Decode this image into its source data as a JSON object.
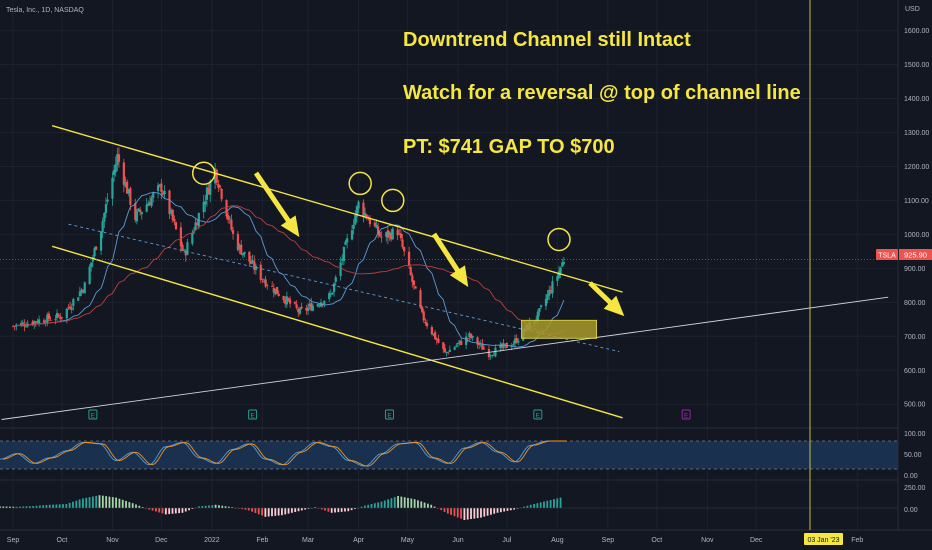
{
  "symbol_title": "Tesla, Inc., 1D, NASDAQ",
  "currency": "USD",
  "annotations": {
    "line1": "Downtrend Channel still Intact",
    "line2": "Watch for a reversal @ top of channel line",
    "line3": "PT: $741 GAP TO $700"
  },
  "last_price_tag": {
    "ticker": "TSLA",
    "price": "925.90"
  },
  "date_marker": "03 Jan '23",
  "earnings_marker_label": "E",
  "colors": {
    "background": "#131722",
    "up": "#26a69a",
    "down": "#ef5350",
    "channel": "#f5e642",
    "annotation_text": "#f5e642",
    "ma_fast": "#5b9bd5",
    "ma_slow": "#c23b3b",
    "trendline": "#d1d4dc"
  },
  "chart_data": [
    {
      "type": "line",
      "panel": "price",
      "title": "Tesla, Inc., 1D, NASDAQ",
      "x_ticks": [
        "Sep",
        "Oct",
        "Nov",
        "Dec",
        "2022",
        "Feb",
        "Mar",
        "Apr",
        "May",
        "Jun",
        "Jul",
        "Aug",
        "Sep",
        "Oct",
        "Nov",
        "Dec",
        "03 Jan '23",
        "Feb"
      ],
      "y_ticks": [
        1600,
        1500,
        1400,
        1300,
        1200,
        1100,
        1000,
        900,
        800,
        700,
        600,
        500
      ],
      "ylabel": "USD",
      "ylim": [
        430,
        1690
      ],
      "series": [
        {
          "name": "TSLA",
          "x": [
            "2021-09-01",
            "2021-09-15",
            "2021-10-01",
            "2021-10-15",
            "2021-10-25",
            "2021-11-04",
            "2021-11-15",
            "2021-12-01",
            "2021-12-15",
            "2022-01-03",
            "2022-01-15",
            "2022-02-01",
            "2022-02-24",
            "2022-03-15",
            "2022-04-01",
            "2022-04-15",
            "2022-04-25",
            "2022-05-10",
            "2022-05-24",
            "2022-06-08",
            "2022-06-20",
            "2022-07-05",
            "2022-07-20",
            "2022-08-01",
            "2022-08-05"
          ],
          "values": [
            730,
            745,
            760,
            850,
            1020,
            1230,
            1050,
            1140,
            940,
            1190,
            980,
            870,
            770,
            820,
            1090,
            990,
            1010,
            760,
            650,
            700,
            650,
            680,
            760,
            880,
            925.9
          ]
        }
      ],
      "price_tag": 925.9,
      "target_zone": [
        741,
        700
      ],
      "channel_points_top": [
        [
          "2021-09-25",
          1320
        ],
        [
          "2022-09-10",
          830
        ]
      ],
      "channel_points_bottom": [
        [
          "2021-09-25",
          965
        ],
        [
          "2022-09-10",
          460
        ]
      ],
      "trendline_points": [
        [
          "2021-08-25",
          455
        ],
        [
          "2023-02-20",
          815
        ]
      ]
    },
    {
      "type": "line",
      "panel": "oscillator",
      "y_ticks": [
        100,
        50,
        0
      ],
      "ylim": [
        -10,
        110
      ],
      "series": [
        {
          "name": "",
          "values": [
            35,
            55,
            20,
            40,
            65,
            95,
            90,
            30,
            60,
            15,
            80,
            95,
            40,
            20,
            70,
            90,
            35,
            15,
            60,
            95,
            80,
            30,
            10,
            55,
            90,
            95,
            40,
            20,
            75,
            95,
            60,
            25,
            85,
            100,
            100
          ]
        }
      ]
    },
    {
      "type": "bar",
      "panel": "histogram",
      "y_ticks": [
        250,
        0
      ],
      "ylim": [
        -220,
        300
      ],
      "values": [
        20,
        15,
        25,
        40,
        50,
        120,
        160,
        130,
        60,
        -20,
        -80,
        -60,
        20,
        40,
        10,
        -30,
        -110,
        -90,
        -40,
        10,
        -60,
        -40,
        30,
        80,
        150,
        110,
        40,
        -70,
        -150,
        -120,
        -60,
        -20,
        40,
        90,
        140
      ]
    }
  ]
}
